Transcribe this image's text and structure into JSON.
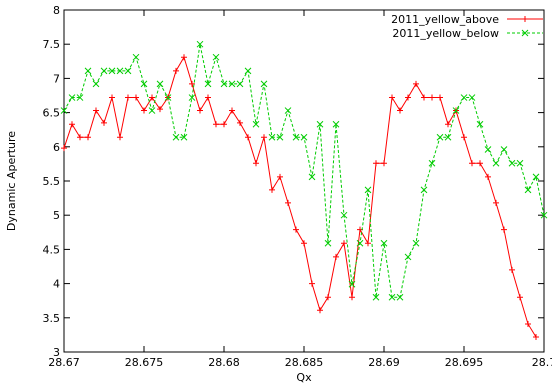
{
  "chart_data": {
    "type": "line",
    "title": "",
    "xlabel": "Qx",
    "ylabel": "Dynamic Aperture",
    "xlim": [
      28.67,
      28.7
    ],
    "ylim": [
      3,
      8
    ],
    "x_ticks": [
      "28.67",
      "28.675",
      "28.68",
      "28.685",
      "28.69",
      "28.695",
      "28.7"
    ],
    "y_ticks": [
      "3",
      "3.5",
      "4",
      "4.5",
      "5",
      "5.5",
      "6",
      "6.5",
      "7",
      "7.5",
      "8"
    ],
    "x_tick_values": [
      28.67,
      28.675,
      28.68,
      28.685,
      28.69,
      28.695,
      28.7
    ],
    "y_tick_values": [
      3,
      3.5,
      4,
      4.5,
      5,
      5.5,
      6,
      6.5,
      7,
      7.5,
      8
    ],
    "grid": false,
    "legend_position": "top-right",
    "series": [
      {
        "name": "2011_yellow_above",
        "color": "#ff0000",
        "marker": "plus",
        "points": [
          [
            28.67,
            5.98
          ],
          [
            28.6705,
            6.33
          ],
          [
            28.671,
            6.14
          ],
          [
            28.6715,
            6.14
          ],
          [
            28.672,
            6.53
          ],
          [
            28.6725,
            6.35
          ],
          [
            28.673,
            6.72
          ],
          [
            28.6735,
            6.14
          ],
          [
            28.674,
            6.72
          ],
          [
            28.6745,
            6.72
          ],
          [
            28.675,
            6.53
          ],
          [
            28.6755,
            6.72
          ],
          [
            28.676,
            6.55
          ],
          [
            28.6765,
            6.72
          ],
          [
            28.677,
            7.11
          ],
          [
            28.6775,
            7.31
          ],
          [
            28.678,
            6.92
          ],
          [
            28.6785,
            6.53
          ],
          [
            28.679,
            6.72
          ],
          [
            28.6795,
            6.33
          ],
          [
            28.68,
            6.33
          ],
          [
            28.6805,
            6.53
          ],
          [
            28.681,
            6.35
          ],
          [
            28.6815,
            6.14
          ],
          [
            28.682,
            5.76
          ],
          [
            28.6825,
            6.14
          ],
          [
            28.683,
            5.37
          ],
          [
            28.6835,
            5.56
          ],
          [
            28.684,
            5.18
          ],
          [
            28.6845,
            4.79
          ],
          [
            28.685,
            4.59
          ],
          [
            28.6855,
            4.0
          ],
          [
            28.686,
            3.61
          ],
          [
            28.6865,
            3.8
          ],
          [
            28.687,
            4.39
          ],
          [
            28.6875,
            4.59
          ],
          [
            28.688,
            3.8
          ],
          [
            28.6885,
            4.79
          ],
          [
            28.689,
            4.59
          ],
          [
            28.6895,
            5.76
          ],
          [
            28.69,
            5.76
          ],
          [
            28.6905,
            6.72
          ],
          [
            28.691,
            6.53
          ],
          [
            28.6915,
            6.72
          ],
          [
            28.692,
            6.92
          ],
          [
            28.6925,
            6.72
          ],
          [
            28.693,
            6.72
          ],
          [
            28.6935,
            6.72
          ],
          [
            28.694,
            6.33
          ],
          [
            28.6945,
            6.53
          ],
          [
            28.695,
            6.14
          ],
          [
            28.6955,
            5.76
          ],
          [
            28.696,
            5.76
          ],
          [
            28.6965,
            5.56
          ],
          [
            28.697,
            5.18
          ],
          [
            28.6975,
            4.79
          ],
          [
            28.698,
            4.2
          ],
          [
            28.6985,
            3.8
          ],
          [
            28.699,
            3.41
          ],
          [
            28.6995,
            3.22
          ]
        ]
      },
      {
        "name": "2011_yellow_below",
        "color": "#00cc00",
        "marker": "cross",
        "points": [
          [
            28.67,
            6.53
          ],
          [
            28.6705,
            6.72
          ],
          [
            28.671,
            6.72
          ],
          [
            28.6715,
            7.11
          ],
          [
            28.672,
            6.92
          ],
          [
            28.6725,
            7.11
          ],
          [
            28.673,
            7.11
          ],
          [
            28.6735,
            7.11
          ],
          [
            28.674,
            7.11
          ],
          [
            28.6745,
            7.31
          ],
          [
            28.675,
            6.92
          ],
          [
            28.6755,
            6.53
          ],
          [
            28.676,
            6.92
          ],
          [
            28.6765,
            6.72
          ],
          [
            28.677,
            6.14
          ],
          [
            28.6775,
            6.14
          ],
          [
            28.678,
            6.72
          ],
          [
            28.6785,
            7.5
          ],
          [
            28.679,
            6.92
          ],
          [
            28.6795,
            7.31
          ],
          [
            28.68,
            6.92
          ],
          [
            28.6805,
            6.92
          ],
          [
            28.681,
            6.92
          ],
          [
            28.6815,
            7.11
          ],
          [
            28.682,
            6.33
          ],
          [
            28.6825,
            6.92
          ],
          [
            28.683,
            6.14
          ],
          [
            28.6835,
            6.14
          ],
          [
            28.684,
            6.53
          ],
          [
            28.6845,
            6.14
          ],
          [
            28.685,
            6.14
          ],
          [
            28.6855,
            5.56
          ],
          [
            28.686,
            6.33
          ],
          [
            28.6865,
            4.59
          ],
          [
            28.687,
            6.33
          ],
          [
            28.6875,
            5.0
          ],
          [
            28.688,
            3.99
          ],
          [
            28.6885,
            4.59
          ],
          [
            28.689,
            5.37
          ],
          [
            28.6895,
            3.8
          ],
          [
            28.69,
            4.59
          ],
          [
            28.6905,
            3.8
          ],
          [
            28.691,
            3.8
          ],
          [
            28.6915,
            4.39
          ],
          [
            28.692,
            4.59
          ],
          [
            28.6925,
            5.37
          ],
          [
            28.693,
            5.76
          ],
          [
            28.6935,
            6.14
          ],
          [
            28.694,
            6.14
          ],
          [
            28.6945,
            6.53
          ],
          [
            28.695,
            6.72
          ],
          [
            28.6955,
            6.72
          ],
          [
            28.696,
            6.33
          ],
          [
            28.6965,
            5.96
          ],
          [
            28.697,
            5.76
          ],
          [
            28.6975,
            5.96
          ],
          [
            28.698,
            5.76
          ],
          [
            28.6985,
            5.76
          ],
          [
            28.699,
            5.37
          ],
          [
            28.6995,
            5.56
          ],
          [
            28.7,
            5.0
          ]
        ]
      }
    ]
  }
}
